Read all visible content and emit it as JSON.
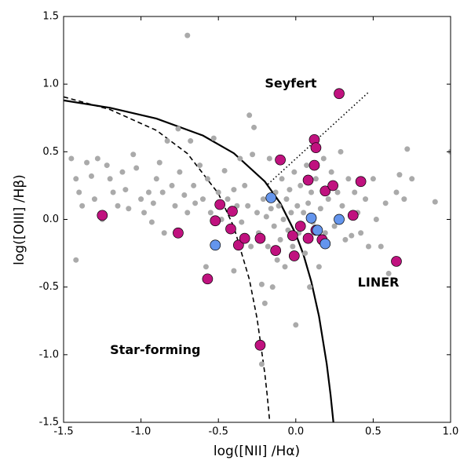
{
  "chart_data": {
    "type": "scatter",
    "xlabel": "log([NII] /Hα)",
    "ylabel": "log([OIII] /Hβ)",
    "xlim": [
      -1.5,
      1.0
    ],
    "ylim": [
      -1.5,
      1.5
    ],
    "xticks": [
      {
        "value": -1.5,
        "label": "-1.5"
      },
      {
        "value": -1.0,
        "label": "-1.0"
      },
      -0.5,
      {
        "value": 0.0,
        "label": "0.0"
      },
      0.5,
      {
        "value": 1.0,
        "label": "1.0"
      }
    ],
    "yticks": [
      {
        "value": -1.5,
        "label": "-1.5"
      },
      {
        "value": -1.0,
        "label": "-1.0"
      },
      -0.5,
      {
        "value": 0.0,
        "label": "0.0"
      },
      0.5,
      {
        "value": 1.0,
        "label": "1.0"
      },
      1.5
    ],
    "annotations": [
      {
        "text": "Seyfert",
        "x": -0.2,
        "y": 1.0
      },
      {
        "text": "LINER",
        "x": 0.4,
        "y": -0.47
      },
      {
        "text": "Star-forming",
        "x": -1.2,
        "y": -0.97
      }
    ],
    "curves": [
      {
        "style": "solid",
        "color": "#000000",
        "x": [
          -1.5,
          -1.2,
          -0.9,
          -0.6,
          -0.4,
          -0.2,
          -0.1,
          0.0,
          0.05,
          0.1,
          0.15,
          0.2,
          0.225,
          0.243
        ],
        "y": [
          0.88,
          0.825,
          0.745,
          0.62,
          0.489,
          0.28,
          0.12,
          -0.108,
          -0.262,
          -0.459,
          -0.716,
          -1.069,
          -1.3,
          -1.5
        ]
      },
      {
        "style": "dashed",
        "color": "#000000",
        "x": [
          -1.5,
          -1.2,
          -0.9,
          -0.7,
          -0.5,
          -0.4,
          -0.3,
          -0.25,
          -0.2,
          -0.185,
          -0.168
        ],
        "y": [
          0.906,
          0.812,
          0.658,
          0.487,
          0.191,
          -0.056,
          -0.443,
          -0.733,
          -1.14,
          -1.296,
          -1.5
        ]
      },
      {
        "style": "dotted",
        "color": "#000000",
        "x": [
          -0.18,
          0.47
        ],
        "y": [
          0.26,
          0.94
        ]
      }
    ],
    "points": [
      {
        "color": "#aaaaaa",
        "size": 3.5,
        "outline": false,
        "x": [
          -1.45,
          -1.42,
          -1.4,
          -1.38,
          -1.42,
          -1.35,
          -1.32,
          -1.3,
          -1.28,
          -1.25,
          -1.22,
          -1.2,
          -1.18,
          -1.15,
          -1.12,
          -1.1,
          -1.08,
          -1.05,
          -1.03,
          -1.0,
          -0.98,
          -0.95,
          -0.93,
          -0.92,
          -0.9,
          -0.88,
          -0.86,
          -0.85,
          -0.83,
          -0.8,
          -0.78,
          -0.76,
          -0.75,
          -0.72,
          -0.7,
          -0.7,
          -0.68,
          -0.66,
          -0.65,
          -0.62,
          -0.6,
          -0.58,
          -0.57,
          -0.55,
          -0.53,
          -0.5,
          -0.48,
          -0.46,
          -0.44,
          -0.42,
          -0.4,
          -0.4,
          -0.38,
          -0.36,
          -0.35,
          -0.33,
          -0.31,
          -0.3,
          -0.29,
          -0.28,
          -0.27,
          -0.25,
          -0.24,
          -0.22,
          -0.22,
          -0.21,
          -0.2,
          -0.19,
          -0.18,
          -0.17,
          -0.16,
          -0.15,
          -0.14,
          -0.13,
          -0.12,
          -0.11,
          -0.1,
          -0.09,
          -0.08,
          -0.07,
          -0.06,
          -0.05,
          -0.04,
          -0.03,
          -0.02,
          -0.01,
          0.0,
          0.01,
          0.02,
          0.03,
          0.05,
          0.06,
          0.07,
          0.08,
          0.09,
          0.1,
          0.11,
          0.13,
          0.15,
          0.16,
          0.18,
          0.19,
          0.21,
          0.23,
          0.25,
          0.27,
          0.29,
          0.3,
          0.32,
          0.34,
          0.36,
          0.38,
          0.4,
          0.42,
          0.45,
          0.47,
          0.5,
          0.52,
          0.55,
          0.58,
          0.6,
          0.65,
          0.67,
          0.7,
          0.72,
          0.75,
          0.9,
          1.0
        ],
        "y": [
          0.45,
          0.3,
          0.2,
          0.1,
          -0.3,
          0.42,
          0.32,
          0.15,
          0.45,
          0.0,
          0.4,
          0.3,
          0.2,
          0.1,
          0.35,
          0.22,
          0.08,
          0.48,
          0.38,
          0.15,
          0.05,
          0.2,
          -0.02,
          0.12,
          0.3,
          0.42,
          0.2,
          -0.1,
          0.58,
          0.25,
          0.1,
          0.67,
          0.35,
          0.18,
          1.36,
          0.05,
          0.58,
          0.25,
          0.12,
          0.4,
          0.15,
          -0.35,
          0.3,
          0.05,
          0.6,
          0.2,
          0.0,
          0.36,
          0.15,
          -0.05,
          0.22,
          -0.38,
          0.1,
          0.45,
          -0.02,
          0.25,
          0.1,
          0.77,
          -0.2,
          0.48,
          0.68,
          0.05,
          -0.1,
          -0.48,
          -1.07,
          0.15,
          -0.62,
          0.02,
          -0.2,
          0.45,
          0.08,
          -0.5,
          -0.05,
          0.2,
          -0.3,
          0.1,
          -0.15,
          0.3,
          0.0,
          -0.35,
          0.15,
          -0.08,
          0.22,
          0.05,
          -0.2,
          0.35,
          -0.78,
          0.1,
          -0.1,
          0.25,
          0.05,
          -0.25,
          0.4,
          0.12,
          -0.5,
          0.2,
          -0.02,
          0.3,
          -0.35,
          0.08,
          0.45,
          -0.1,
          0.15,
          0.35,
          -0.05,
          0.2,
          0.5,
          0.1,
          -0.15,
          0.3,
          -0.12,
          0.2,
          0.05,
          -0.1,
          0.15,
          -0.2,
          0.3,
          0.0,
          -0.2,
          0.12,
          -0.4,
          0.2,
          0.33,
          0.15,
          0.52,
          0.3,
          0.13,
          0.5
        ]
      },
      {
        "color": "#c0127f",
        "size": 6.5,
        "outline": true,
        "x": [
          -1.25,
          -0.76,
          -0.57,
          -0.49,
          -0.52,
          -0.42,
          -0.41,
          -0.37,
          -0.33,
          -0.23,
          -0.23,
          -0.13,
          -0.1,
          -0.02,
          -0.01,
          0.03,
          0.08,
          0.08,
          0.12,
          0.13,
          0.12,
          0.13,
          0.17,
          0.19,
          0.24,
          0.28,
          0.37,
          0.42,
          0.65
        ],
        "y": [
          0.03,
          -0.1,
          -0.44,
          0.11,
          -0.01,
          -0.07,
          0.06,
          -0.19,
          -0.14,
          -0.14,
          -0.93,
          -0.23,
          0.44,
          -0.12,
          -0.27,
          -0.05,
          -0.14,
          0.29,
          0.59,
          0.53,
          0.4,
          -0.08,
          -0.15,
          0.21,
          0.25,
          0.93,
          0.03,
          0.28,
          -0.31
        ]
      },
      {
        "color": "#6495ed",
        "size": 6.5,
        "outline": true,
        "x": [
          -0.16,
          -0.52,
          0.1,
          0.14,
          0.19,
          0.28
        ],
        "y": [
          0.16,
          -0.19,
          0.01,
          -0.08,
          -0.18,
          0.0
        ]
      }
    ]
  }
}
